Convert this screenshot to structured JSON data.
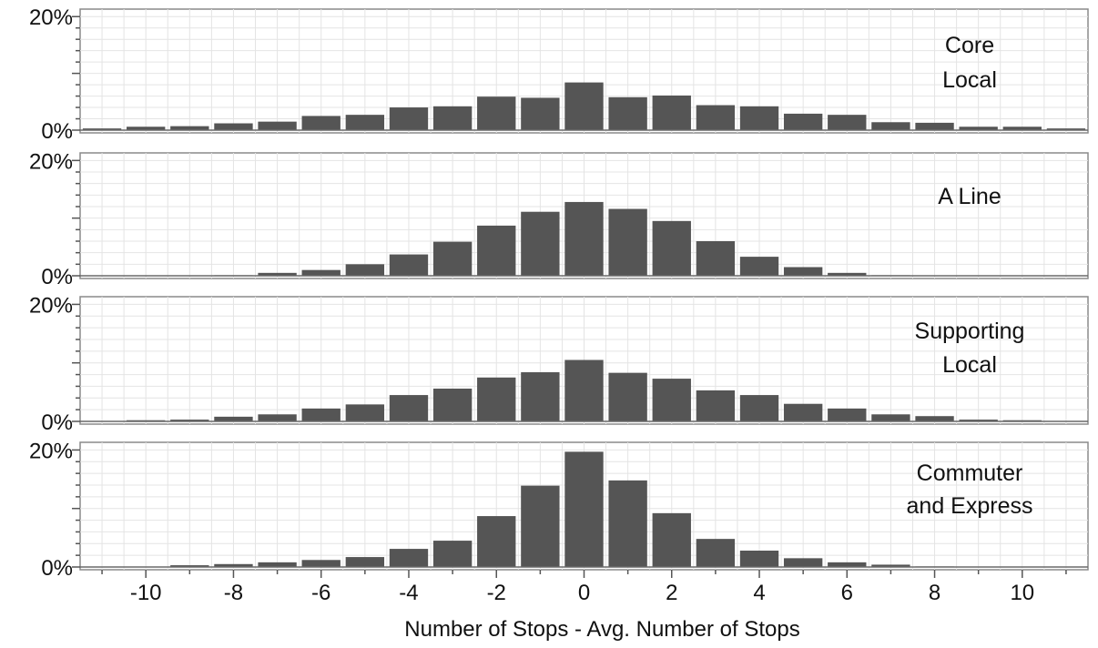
{
  "chart_data": {
    "type": "bar",
    "layout": "small-multiples",
    "x": [
      -11,
      -10,
      -9,
      -8,
      -7,
      -6,
      -5,
      -4,
      -3,
      -2,
      -1,
      0,
      1,
      2,
      3,
      4,
      5,
      6,
      7,
      8,
      9,
      10,
      11
    ],
    "x_ticks": [
      "-10",
      "-8",
      "-6",
      "-4",
      "-2",
      "0",
      "2",
      "4",
      "6",
      "8",
      "10"
    ],
    "x_tick_values": [
      -10,
      -8,
      -6,
      -4,
      -2,
      0,
      2,
      4,
      6,
      8,
      10
    ],
    "xlabel": "Number of Stops - Avg. Number of Stops",
    "xlim": [
      -11,
      11
    ],
    "ylim": [
      0,
      21
    ],
    "y_ticks": [
      "0%",
      "20%"
    ],
    "y_tick_values": [
      0,
      20
    ],
    "grid": true,
    "bar_color": "#555555",
    "series": [
      {
        "name": "Core Local",
        "label_lines": [
          "Core",
          "Local"
        ],
        "values": [
          0.3,
          0.6,
          0.7,
          1.2,
          1.5,
          2.5,
          2.7,
          4.0,
          4.2,
          5.9,
          5.7,
          8.4,
          5.8,
          6.1,
          4.4,
          4.2,
          2.9,
          2.7,
          1.4,
          1.3,
          0.6,
          0.6,
          0.3
        ]
      },
      {
        "name": "A Line",
        "label_lines": [
          "A Line"
        ],
        "values": [
          0.0,
          0.05,
          0.05,
          0.1,
          0.5,
          1.0,
          2.0,
          3.7,
          5.9,
          8.7,
          11.1,
          12.8,
          11.6,
          9.5,
          6.0,
          3.3,
          1.5,
          0.5,
          0.1,
          0.05,
          0.0,
          0.0,
          0.0
        ]
      },
      {
        "name": "Supporting Local",
        "label_lines": [
          "Supporting",
          "Local"
        ],
        "values": [
          0.05,
          0.2,
          0.3,
          0.8,
          1.2,
          2.2,
          2.9,
          4.5,
          5.6,
          7.5,
          8.4,
          10.5,
          8.3,
          7.3,
          5.3,
          4.5,
          3.0,
          2.2,
          1.2,
          0.9,
          0.3,
          0.2,
          0.05
        ]
      },
      {
        "name": "Commuter and Express",
        "label_lines": [
          "Commuter",
          "and Express"
        ],
        "values": [
          0.0,
          0.05,
          0.3,
          0.5,
          0.8,
          1.2,
          1.7,
          3.1,
          4.5,
          8.7,
          13.9,
          19.7,
          14.8,
          9.2,
          4.8,
          2.8,
          1.5,
          0.8,
          0.4,
          0.1,
          0.05,
          0.0,
          0.0
        ]
      }
    ]
  }
}
